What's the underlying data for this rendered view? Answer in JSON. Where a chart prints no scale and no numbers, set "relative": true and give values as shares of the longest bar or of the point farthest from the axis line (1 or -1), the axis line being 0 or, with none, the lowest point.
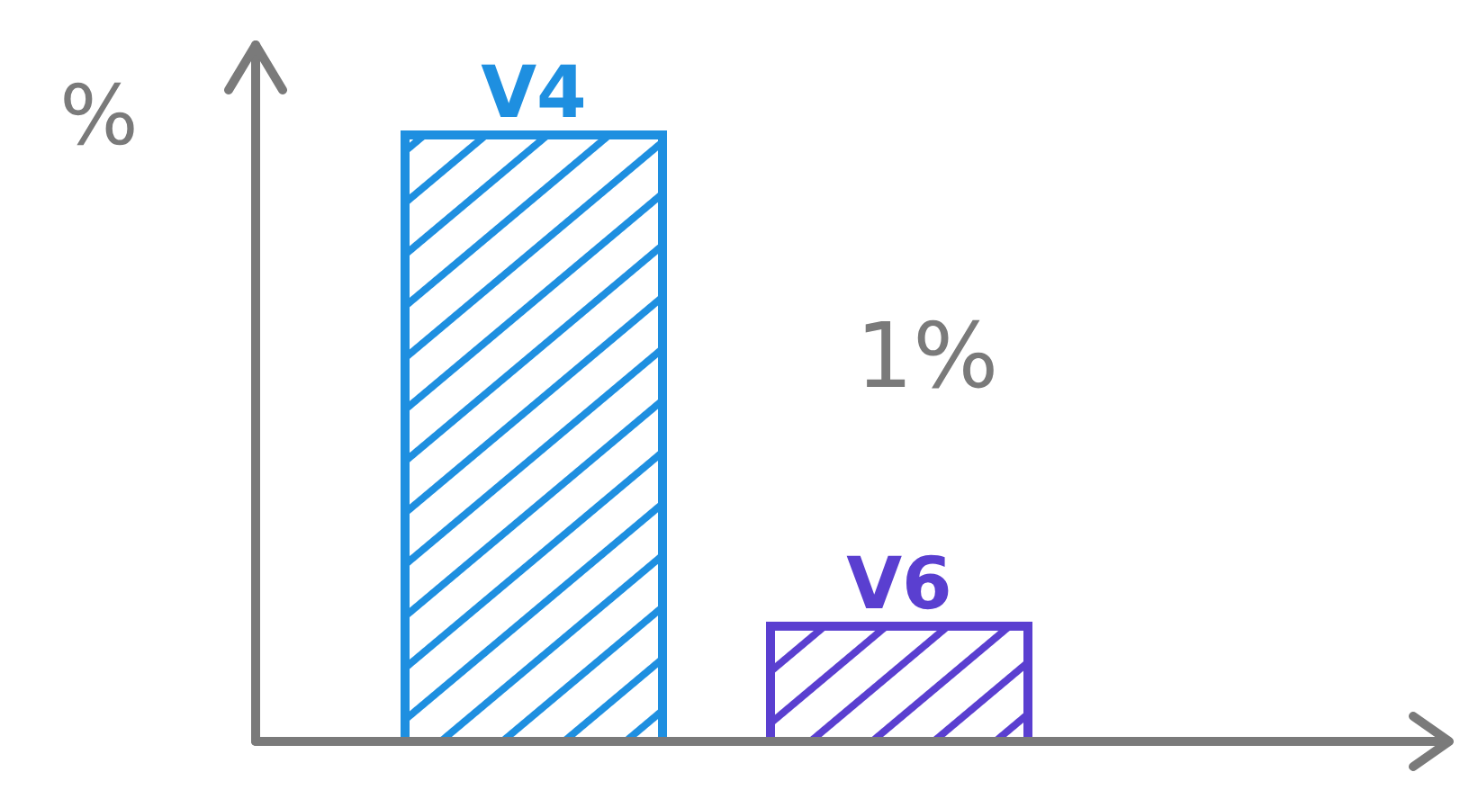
{
  "chart_data": {
    "type": "bar",
    "relative": true,
    "ylabel": "%",
    "categories": [
      "V4",
      "V6"
    ],
    "values": [
      1,
      0.19
    ],
    "colors": [
      "#1e8fe0",
      "#5a3fd0"
    ],
    "annotations": [
      "1%"
    ]
  }
}
